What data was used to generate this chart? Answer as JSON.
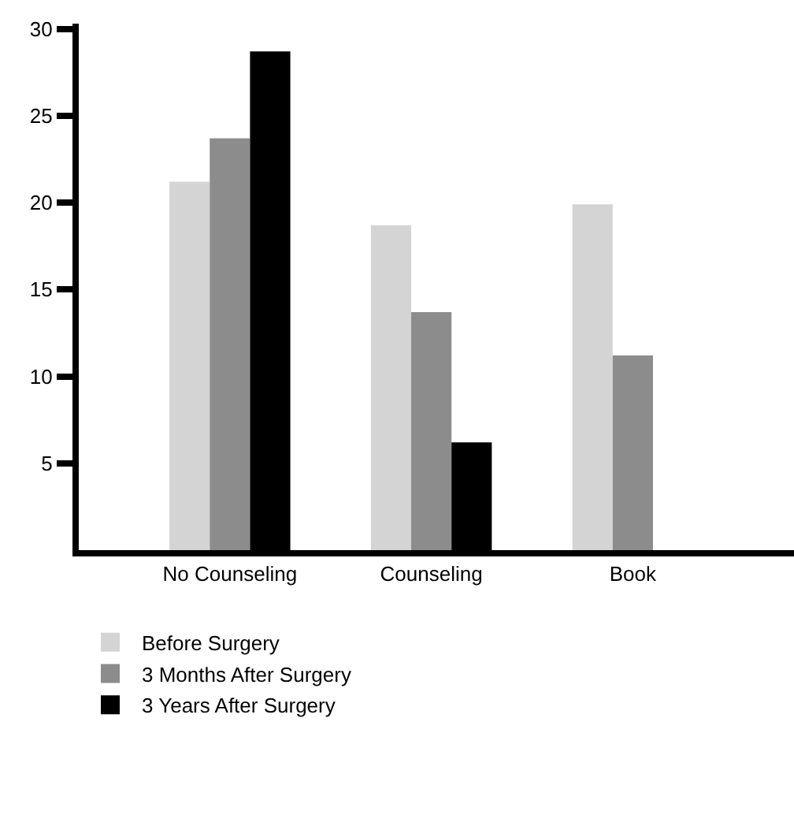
{
  "chart_data": {
    "type": "bar",
    "categories": [
      "No Counseling",
      "Counseling",
      "Book"
    ],
    "series": [
      {
        "name": "Before Surgery",
        "color": "#d4d4d4",
        "values": [
          21.2,
          18.7,
          19.9
        ]
      },
      {
        "name": "3 Months After Surgery",
        "color": "#8c8c8c",
        "values": [
          23.7,
          13.7,
          11.2
        ]
      },
      {
        "name": "3 Years After Surgery",
        "color": "#000000",
        "values": [
          28.7,
          6.2,
          null
        ]
      }
    ],
    "ylim": [
      0,
      30.3
    ],
    "yticks": [
      5,
      10,
      15,
      20,
      25,
      30
    ],
    "legend": "bottom left"
  }
}
